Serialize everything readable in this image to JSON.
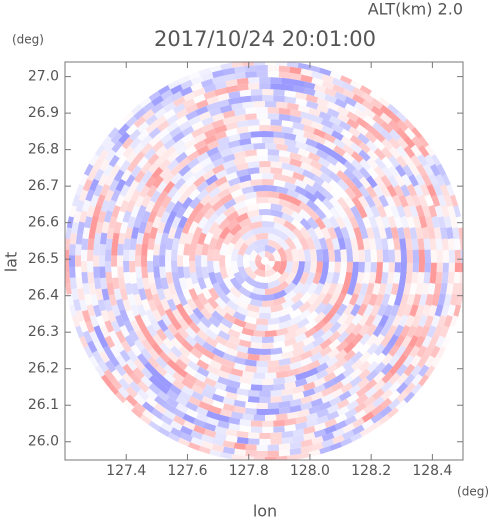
{
  "chart_data": {
    "type": "radar-ppi",
    "title": "2017/10/24 20:01:00",
    "subtitle": "ALT(km) 2.0",
    "x_label": "lon",
    "y_label": "lat",
    "x_unit": "(deg)",
    "y_unit": "(deg)",
    "xlim": [
      127.2,
      128.5
    ],
    "ylim": [
      25.95,
      27.04
    ],
    "xticks": [
      127.4,
      127.6,
      127.8,
      {
        "value": 128.0,
        "label": "128.0"
      },
      128.2,
      128.4
    ],
    "yticks": [
      {
        "value": 26.0,
        "label": "26.0"
      },
      26.1,
      26.2,
      26.3,
      26.4,
      26.5,
      26.6,
      26.7,
      26.8,
      26.9,
      {
        "value": 27.0,
        "label": "27.0"
      }
    ],
    "positive_color": "#ff9a9a",
    "negative_color": "#9a9aff"
  }
}
